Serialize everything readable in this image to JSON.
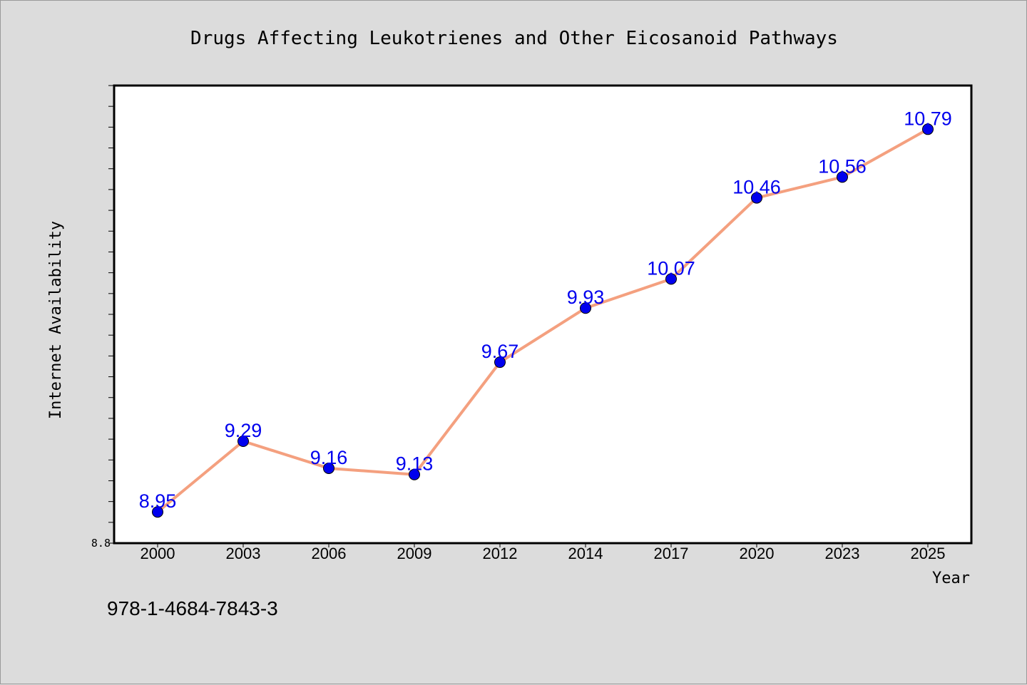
{
  "chart_data": {
    "type": "line",
    "title": "Drugs Affecting Leukotrienes and Other Eicosanoid Pathways",
    "xlabel": "Year",
    "ylabel": "Internet Availability",
    "categories": [
      "2000",
      "2003",
      "2006",
      "2009",
      "2012",
      "2014",
      "2017",
      "2020",
      "2023",
      "2025"
    ],
    "values": [
      8.95,
      9.29,
      9.16,
      9.13,
      9.67,
      9.93,
      10.07,
      10.46,
      10.56,
      10.79
    ],
    "data_labels": [
      "8.95",
      "9.29",
      "9.16",
      "9.13",
      "9.67",
      "9.93",
      "10.07",
      "10.46",
      "10.56",
      "10.79"
    ],
    "ylim": [
      8.8,
      11.0
    ],
    "y_tick_label": "8.8",
    "grid": false,
    "line_color": "#f4a07f",
    "marker_color": "#0000ee"
  },
  "footer": {
    "isbn": "978-1-4684-7843-3"
  }
}
